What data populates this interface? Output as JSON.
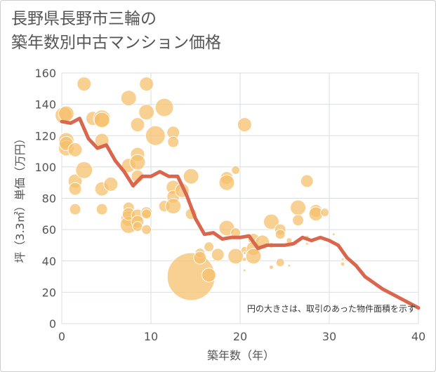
{
  "title_lines": [
    "長野県長野市三輪の",
    "築年数別中古マンション価格"
  ],
  "chart_data": {
    "type": "scatter",
    "title": "長野県長野市三輪の築年数別中古マンション価格",
    "xlabel": "築年数（年）",
    "ylabel": "坪（3.3㎡）単価（万円）",
    "xlim": [
      0,
      40
    ],
    "ylim": [
      0,
      160
    ],
    "xticks": [
      0,
      10,
      20,
      30,
      40
    ],
    "yticks": [
      0,
      20,
      40,
      60,
      80,
      100,
      120,
      140,
      160
    ],
    "note": "円の大きさは、取引のあった物件面積を示す",
    "colors": {
      "bubble": "#f5c06c",
      "line": "#d9674e",
      "grid": "#d9dde3"
    },
    "bubbles": [
      {
        "x": 0.2,
        "y": 133,
        "r": 12
      },
      {
        "x": 0.5,
        "y": 134,
        "r": 11
      },
      {
        "x": 0.5,
        "y": 117,
        "r": 11
      },
      {
        "x": 0.5,
        "y": 112,
        "r": 11
      },
      {
        "x": 0.5,
        "y": 115,
        "r": 10
      },
      {
        "x": 1.5,
        "y": 111,
        "r": 10
      },
      {
        "x": 1.5,
        "y": 91,
        "r": 10
      },
      {
        "x": 1.5,
        "y": 86,
        "r": 9
      },
      {
        "x": 1.5,
        "y": 73,
        "r": 8
      },
      {
        "x": 2.5,
        "y": 153,
        "r": 10
      },
      {
        "x": 2.5,
        "y": 98,
        "r": 12
      },
      {
        "x": 3.5,
        "y": 131,
        "r": 10
      },
      {
        "x": 4.5,
        "y": 131,
        "r": 12
      },
      {
        "x": 4.5,
        "y": 130,
        "r": 11
      },
      {
        "x": 4.5,
        "y": 117,
        "r": 10
      },
      {
        "x": 4.5,
        "y": 86,
        "r": 10
      },
      {
        "x": 4.5,
        "y": 73,
        "r": 8
      },
      {
        "x": 5.5,
        "y": 89,
        "r": 10
      },
      {
        "x": 7.5,
        "y": 144,
        "r": 11
      },
      {
        "x": 7.5,
        "y": 101,
        "r": 10
      },
      {
        "x": 7.5,
        "y": 74,
        "r": 8
      },
      {
        "x": 7.5,
        "y": 67,
        "r": 11
      },
      {
        "x": 7.5,
        "y": 63,
        "r": 12
      },
      {
        "x": 7.5,
        "y": 70,
        "r": 9
      },
      {
        "x": 8.5,
        "y": 127,
        "r": 10
      },
      {
        "x": 8.5,
        "y": 108,
        "r": 10
      },
      {
        "x": 8.5,
        "y": 103,
        "r": 11
      },
      {
        "x": 8.5,
        "y": 94,
        "r": 9
      },
      {
        "x": 8.5,
        "y": 69,
        "r": 9
      },
      {
        "x": 8.5,
        "y": 65,
        "r": 9
      },
      {
        "x": 8.5,
        "y": 62,
        "r": 7
      },
      {
        "x": 9.5,
        "y": 153,
        "r": 10
      },
      {
        "x": 9.5,
        "y": 135,
        "r": 11
      },
      {
        "x": 9.5,
        "y": 71,
        "r": 8
      },
      {
        "x": 9.5,
        "y": 70,
        "r": 7
      },
      {
        "x": 9.5,
        "y": 60,
        "r": 7
      },
      {
        "x": 10.5,
        "y": 120,
        "r": 14
      },
      {
        "x": 11.5,
        "y": 138,
        "r": 13
      },
      {
        "x": 11.5,
        "y": 75,
        "r": 8
      },
      {
        "x": 12.5,
        "y": 122,
        "r": 9
      },
      {
        "x": 12.5,
        "y": 116,
        "r": 8
      },
      {
        "x": 12.5,
        "y": 87,
        "r": 10
      },
      {
        "x": 12.5,
        "y": 81,
        "r": 9
      },
      {
        "x": 12.5,
        "y": 75,
        "r": 11
      },
      {
        "x": 13.5,
        "y": 85,
        "r": 10
      },
      {
        "x": 14.5,
        "y": 94,
        "r": 11
      },
      {
        "x": 14.5,
        "y": 70,
        "r": 8
      },
      {
        "x": 14.5,
        "y": 30,
        "r": 34
      },
      {
        "x": 15.5,
        "y": 45,
        "r": 7
      },
      {
        "x": 15.5,
        "y": 42,
        "r": 9
      },
      {
        "x": 16.5,
        "y": 49,
        "r": 7
      },
      {
        "x": 16.5,
        "y": 31,
        "r": 10
      },
      {
        "x": 17.5,
        "y": 44,
        "r": 9
      },
      {
        "x": 18.5,
        "y": 93,
        "r": 9
      },
      {
        "x": 18.5,
        "y": 90,
        "r": 11
      },
      {
        "x": 18.5,
        "y": 61,
        "r": 11
      },
      {
        "x": 19.5,
        "y": 98,
        "r": 6
      },
      {
        "x": 19.5,
        "y": 58,
        "r": 7
      },
      {
        "x": 19.5,
        "y": 43,
        "r": 11
      },
      {
        "x": 20.5,
        "y": 127,
        "r": 10
      },
      {
        "x": 20.5,
        "y": 47,
        "r": 5
      },
      {
        "x": 20.5,
        "y": 41,
        "r": 3
      },
      {
        "x": 20.5,
        "y": 34,
        "r": 2
      },
      {
        "x": 21.5,
        "y": 54,
        "r": 8
      },
      {
        "x": 21.5,
        "y": 48,
        "r": 10
      },
      {
        "x": 21.5,
        "y": 43,
        "r": 11
      },
      {
        "x": 22.5,
        "y": 52,
        "r": 10
      },
      {
        "x": 23.5,
        "y": 65,
        "r": 11
      },
      {
        "x": 23.5,
        "y": 50,
        "r": 4
      },
      {
        "x": 23.5,
        "y": 36,
        "r": 3
      },
      {
        "x": 24.5,
        "y": 60,
        "r": 8
      },
      {
        "x": 24.5,
        "y": 57,
        "r": 7
      },
      {
        "x": 24.5,
        "y": 39,
        "r": 6
      },
      {
        "x": 25.5,
        "y": 53,
        "r": 4
      },
      {
        "x": 26.5,
        "y": 74,
        "r": 11
      },
      {
        "x": 26.5,
        "y": 66,
        "r": 8
      },
      {
        "x": 27.5,
        "y": 91,
        "r": 9
      },
      {
        "x": 27.5,
        "y": 55,
        "r": 3
      },
      {
        "x": 27.5,
        "y": 51,
        "r": 2
      },
      {
        "x": 28.5,
        "y": 72,
        "r": 9
      },
      {
        "x": 28.5,
        "y": 70,
        "r": 10
      },
      {
        "x": 29.5,
        "y": 71,
        "r": 6
      },
      {
        "x": 30.5,
        "y": 57,
        "r": 2
      },
      {
        "x": 31.5,
        "y": 38,
        "r": 3
      },
      {
        "x": 20.5,
        "y": 45,
        "r": 2
      },
      {
        "x": 25.5,
        "y": 37,
        "r": 2
      },
      {
        "x": 31.5,
        "y": 41,
        "r": 2
      }
    ],
    "series": [
      {
        "x": [
          0,
          1,
          2,
          3,
          4,
          5,
          6,
          7,
          8,
          9,
          10,
          11,
          12,
          13,
          14,
          15,
          16,
          17,
          18,
          19,
          20,
          21,
          22,
          23,
          24,
          25,
          26,
          27,
          28,
          29,
          30,
          31,
          32,
          33,
          34,
          35,
          36,
          37,
          38,
          39,
          40
        ],
        "y": [
          129,
          128,
          131,
          118,
          112,
          114,
          104,
          97,
          88,
          94,
          94,
          97,
          94,
          94,
          82,
          67,
          57,
          58,
          54,
          55,
          55,
          56,
          48,
          50,
          50,
          50,
          51,
          55,
          53,
          55,
          53,
          50,
          42,
          37,
          30,
          26,
          22,
          19,
          16,
          13,
          10
        ]
      }
    ]
  }
}
